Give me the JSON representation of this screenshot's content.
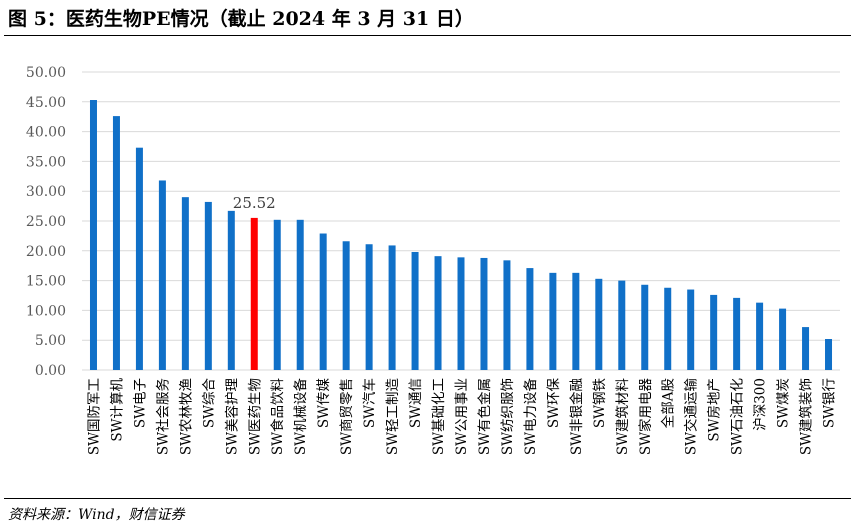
{
  "title": "图 5：医药生物PE情况（截止 2024 年 3 月 31 日）",
  "source": "资料来源：Wind，财信证券",
  "chart_data": {
    "type": "bar",
    "title": "",
    "xlabel": "",
    "ylabel": "",
    "ylim": [
      0,
      50
    ],
    "yticks": [
      "0.00",
      "5.00",
      "10.00",
      "15.00",
      "20.00",
      "25.00",
      "30.00",
      "35.00",
      "40.00",
      "45.00",
      "50.00"
    ],
    "grid": true,
    "legend": "none",
    "bar_color": "#1070c8",
    "highlight_color": "#ff0000",
    "highlight_index": 7,
    "annotation": "25.52",
    "categories": [
      "SW国防军工",
      "SW计算机",
      "SW电子",
      "SW社会服务",
      "SW农林牧渔",
      "SW综合",
      "SW美容护理",
      "SW医药生物",
      "SW食品饮料",
      "SW机械设备",
      "SW传媒",
      "SW商贸零售",
      "SW汽车",
      "SW轻工制造",
      "SW通信",
      "SW基础化工",
      "SW公用事业",
      "SW有色金属",
      "SW纺织服饰",
      "SW电力设备",
      "SW环保",
      "SW非银金融",
      "SW钢铁",
      "SW建筑材料",
      "SW家用电器",
      "全部A股",
      "SW交通运输",
      "SW房地产",
      "SW石油石化",
      "沪深300",
      "SW煤炭",
      "SW建筑装饰",
      "SW银行"
    ],
    "values": [
      45.3,
      42.6,
      37.3,
      31.8,
      29.0,
      28.2,
      26.7,
      25.52,
      25.2,
      25.2,
      22.9,
      21.6,
      21.1,
      20.9,
      19.8,
      19.1,
      18.9,
      18.8,
      18.4,
      17.1,
      16.3,
      16.3,
      15.3,
      15.0,
      14.3,
      13.8,
      13.5,
      12.6,
      12.1,
      11.3,
      10.3,
      7.2,
      5.2
    ]
  }
}
